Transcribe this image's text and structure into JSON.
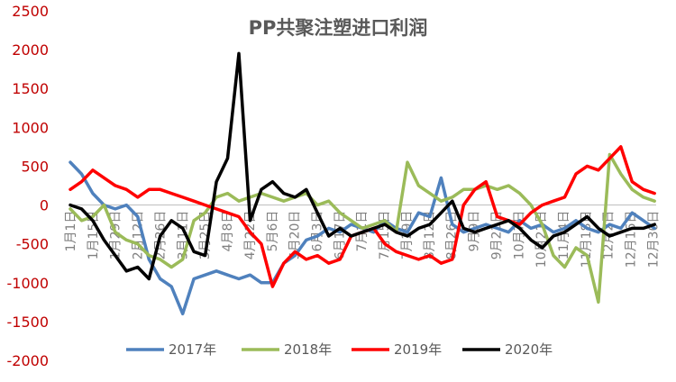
{
  "chart_data": {
    "type": "line",
    "title": "PP共聚注塑进口利润",
    "xlabel": "",
    "ylabel": "",
    "ylim": [
      -2000,
      2500
    ],
    "y_ticks": [
      2500,
      2000,
      1500,
      1000,
      500,
      0,
      -500,
      -1000,
      -1500,
      -2000
    ],
    "x_ticks": [
      "1月1日",
      "1月15日",
      "1月29日",
      "2月12日",
      "2月26日",
      "3月11日",
      "3月25日",
      "4月8日",
      "4月22日",
      "5月6日",
      "5月20日",
      "6月3日",
      "6月17日",
      "7月1日",
      "7月15日",
      "7月29日",
      "8月12日",
      "8月26日",
      "9月9日",
      "9月23日",
      "10月7日",
      "10月21日",
      "11月4日",
      "11月18日",
      "12月2日",
      "12月16日",
      "12月30日"
    ],
    "legend_position": "bottom",
    "grid": false,
    "colors": {
      "2017": "#4f81bd",
      "2018": "#9bbb59",
      "2019": "#ff0000",
      "2020": "#000000",
      "tick": "#c00000",
      "zero_line": "#bfbfbf"
    },
    "series": [
      {
        "name": "2017年",
        "x": [
          "2017-01-01",
          "2017-01-08",
          "2017-01-15",
          "2017-01-22",
          "2017-01-29",
          "2017-02-05",
          "2017-02-12",
          "2017-02-19",
          "2017-02-26",
          "2017-03-05",
          "2017-03-12",
          "2017-03-19",
          "2017-03-26",
          "2017-04-02",
          "2017-04-09",
          "2017-04-16",
          "2017-04-23",
          "2017-04-30",
          "2017-05-07",
          "2017-05-14",
          "2017-05-21",
          "2017-05-28",
          "2017-06-04",
          "2017-06-11",
          "2017-06-18",
          "2017-06-25",
          "2017-07-02",
          "2017-07-09",
          "2017-07-16",
          "2017-07-23",
          "2017-07-30",
          "2017-08-06",
          "2017-08-13",
          "2017-08-20",
          "2017-08-27",
          "2017-09-03",
          "2017-09-10",
          "2017-09-17",
          "2017-09-24",
          "2017-10-01",
          "2017-10-08",
          "2017-10-15",
          "2017-10-22",
          "2017-10-29",
          "2017-11-05",
          "2017-11-12",
          "2017-11-19",
          "2017-11-26",
          "2017-12-03",
          "2017-12-10",
          "2017-12-17",
          "2017-12-24",
          "2017-12-31"
        ],
        "values": [
          550,
          400,
          150,
          0,
          -50,
          0,
          -150,
          -700,
          -950,
          -1050,
          -1400,
          -950,
          -900,
          -850,
          -900,
          -950,
          -900,
          -1000,
          -1000,
          -750,
          -650,
          -450,
          -400,
          -300,
          -350,
          -250,
          -300,
          -350,
          -200,
          -300,
          -350,
          -100,
          -150,
          350,
          -250,
          -350,
          -300,
          -250,
          -300,
          -350,
          -200,
          -300,
          -250,
          -350,
          -300,
          -200,
          -300,
          -350,
          -250,
          -300,
          -100,
          -200,
          -300
        ]
      },
      {
        "name": "2018年",
        "x": [
          "2018-01-01",
          "2018-01-08",
          "2018-01-15",
          "2018-01-22",
          "2018-01-29",
          "2018-02-05",
          "2018-02-12",
          "2018-02-19",
          "2018-02-26",
          "2018-03-05",
          "2018-03-12",
          "2018-03-19",
          "2018-03-26",
          "2018-04-02",
          "2018-04-09",
          "2018-04-16",
          "2018-04-23",
          "2018-04-30",
          "2018-05-07",
          "2018-05-14",
          "2018-05-21",
          "2018-05-28",
          "2018-06-04",
          "2018-06-11",
          "2018-06-18",
          "2018-06-25",
          "2018-07-02",
          "2018-07-09",
          "2018-07-16",
          "2018-07-23",
          "2018-07-30",
          "2018-08-06",
          "2018-08-13",
          "2018-08-20",
          "2018-08-27",
          "2018-09-03",
          "2018-09-10",
          "2018-09-17",
          "2018-09-24",
          "2018-10-01",
          "2018-10-08",
          "2018-10-15",
          "2018-10-22",
          "2018-10-29",
          "2018-11-05",
          "2018-11-12",
          "2018-11-19",
          "2018-11-26",
          "2018-12-03",
          "2018-12-10",
          "2018-12-17",
          "2018-12-24",
          "2018-12-31"
        ],
        "values": [
          -50,
          -200,
          -150,
          0,
          -350,
          -450,
          -500,
          -650,
          -700,
          -800,
          -700,
          -200,
          -100,
          100,
          150,
          50,
          100,
          150,
          100,
          50,
          100,
          150,
          0,
          50,
          -100,
          -200,
          -300,
          -250,
          -200,
          -350,
          550,
          250,
          150,
          50,
          100,
          200,
          200,
          250,
          200,
          250,
          150,
          0,
          -250,
          -650,
          -800,
          -550,
          -650,
          -1250,
          650,
          400,
          200,
          100,
          50
        ]
      },
      {
        "name": "2019年",
        "x": [
          "2019-01-01",
          "2019-01-08",
          "2019-01-15",
          "2019-01-22",
          "2019-01-29",
          "2019-02-05",
          "2019-02-12",
          "2019-02-19",
          "2019-02-26",
          "2019-03-05",
          "2019-03-12",
          "2019-03-19",
          "2019-03-26",
          "2019-04-02",
          "2019-04-09",
          "2019-04-16",
          "2019-04-23",
          "2019-04-30",
          "2019-05-07",
          "2019-05-14",
          "2019-05-21",
          "2019-05-28",
          "2019-06-04",
          "2019-06-11",
          "2019-06-18",
          "2019-06-25",
          "2019-07-02",
          "2019-07-09",
          "2019-07-16",
          "2019-07-23",
          "2019-07-30",
          "2019-08-06",
          "2019-08-13",
          "2019-08-20",
          "2019-08-27",
          "2019-09-03",
          "2019-09-10",
          "2019-09-17",
          "2019-09-24",
          "2019-10-01",
          "2019-10-08",
          "2019-10-15",
          "2019-10-22",
          "2019-10-29",
          "2019-11-05",
          "2019-11-12",
          "2019-11-19",
          "2019-11-26",
          "2019-12-03",
          "2019-12-10",
          "2019-12-17",
          "2019-12-24",
          "2019-12-31"
        ],
        "values": [
          200,
          300,
          450,
          350,
          250,
          200,
          100,
          200,
          200,
          150,
          100,
          50,
          0,
          -50,
          -100,
          -150,
          -350,
          -500,
          -1050,
          -750,
          -600,
          -700,
          -650,
          -750,
          -700,
          -400,
          -350,
          -300,
          -500,
          -600,
          -650,
          -700,
          -650,
          -750,
          -700,
          0,
          200,
          300,
          -150,
          -200,
          -250,
          -100,
          0,
          50,
          100,
          400,
          500,
          450,
          600,
          750,
          300,
          200,
          150
        ]
      },
      {
        "name": "2020年",
        "x": [
          "2020-01-01",
          "2020-01-08",
          "2020-01-15",
          "2020-01-22",
          "2020-01-29",
          "2020-02-05",
          "2020-02-12",
          "2020-02-19",
          "2020-02-26",
          "2020-03-04",
          "2020-03-11",
          "2020-03-18",
          "2020-03-25",
          "2020-04-01",
          "2020-04-08",
          "2020-04-15",
          "2020-04-22",
          "2020-04-29",
          "2020-05-06",
          "2020-05-13",
          "2020-05-20",
          "2020-05-27",
          "2020-06-03",
          "2020-06-10",
          "2020-06-17",
          "2020-06-24",
          "2020-07-01",
          "2020-07-08",
          "2020-07-15",
          "2020-07-22",
          "2020-07-29",
          "2020-08-05",
          "2020-08-12",
          "2020-08-19",
          "2020-08-26",
          "2020-09-02",
          "2020-09-09",
          "2020-09-16",
          "2020-09-23",
          "2020-09-30",
          "2020-10-07",
          "2020-10-14",
          "2020-10-21",
          "2020-10-28",
          "2020-11-04",
          "2020-11-11",
          "2020-11-18",
          "2020-11-25",
          "2020-12-02",
          "2020-12-09",
          "2020-12-16",
          "2020-12-23",
          "2020-12-30"
        ],
        "values": [
          0,
          -50,
          -200,
          -450,
          -650,
          -850,
          -800,
          -950,
          -400,
          -200,
          -300,
          -600,
          -650,
          300,
          600,
          1950,
          -200,
          200,
          300,
          150,
          100,
          200,
          -100,
          -400,
          -300,
          -400,
          -350,
          -300,
          -250,
          -350,
          -400,
          -300,
          -250,
          -100,
          50,
          -300,
          -350,
          -300,
          -250,
          -200,
          -300,
          -450,
          -550,
          -400,
          -350,
          -250,
          -150,
          -300,
          -400,
          -350,
          -300,
          -300,
          -250
        ]
      }
    ]
  }
}
